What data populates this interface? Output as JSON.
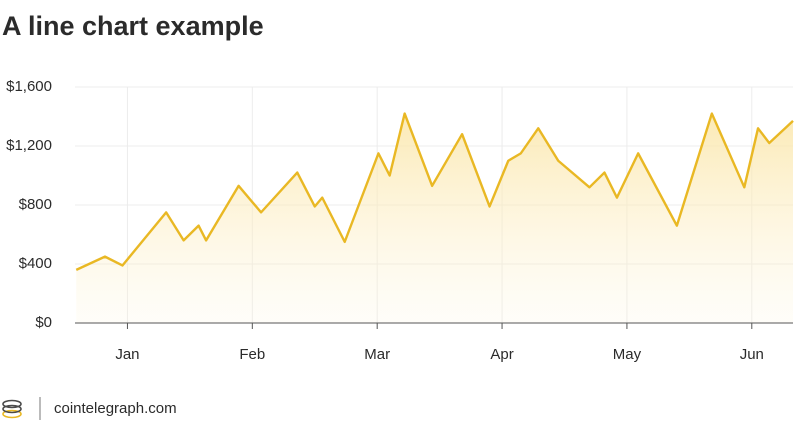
{
  "chart_data": {
    "type": "line",
    "title": "A line chart example",
    "x": [
      0.59,
      0.82,
      0.96,
      1.31,
      1.45,
      1.57,
      1.63,
      1.89,
      2.07,
      2.36,
      2.5,
      2.56,
      2.74,
      3.01,
      3.1,
      3.22,
      3.44,
      3.68,
      3.9,
      4.05,
      4.15,
      4.29,
      4.45,
      4.7,
      4.82,
      4.92,
      5.09,
      5.4,
      5.68,
      5.94,
      6.05,
      6.14,
      6.33
    ],
    "series": [
      {
        "color": "#e9b824",
        "values": [
          360,
          450,
          390,
          750,
          560,
          660,
          560,
          930,
          750,
          1020,
          790,
          850,
          550,
          1150,
          1000,
          1420,
          930,
          1280,
          790,
          1100,
          1150,
          1320,
          1100,
          920,
          1020,
          850,
          1150,
          660,
          1420,
          920,
          1320,
          1220,
          1370
        ]
      }
    ],
    "xlim": [
      0.58,
      6.33
    ],
    "xticks": [
      {
        "value": 1,
        "label": "Jan"
      },
      {
        "value": 2,
        "label": "Feb"
      },
      {
        "value": 3,
        "label": "Mar"
      },
      {
        "value": 4,
        "label": "Apr"
      },
      {
        "value": 5,
        "label": "May"
      },
      {
        "value": 6,
        "label": "Jun"
      }
    ],
    "ylim": [
      0,
      1600
    ],
    "yticks": [
      {
        "value": 0,
        "label": "$0"
      },
      {
        "value": 400,
        "label": "$400"
      },
      {
        "value": 800,
        "label": "$800"
      },
      {
        "value": 1200,
        "label": "$1,200"
      },
      {
        "value": 1600,
        "label": "$1,600"
      }
    ],
    "grid": true
  },
  "footer": {
    "source": "cointelegraph.com"
  }
}
